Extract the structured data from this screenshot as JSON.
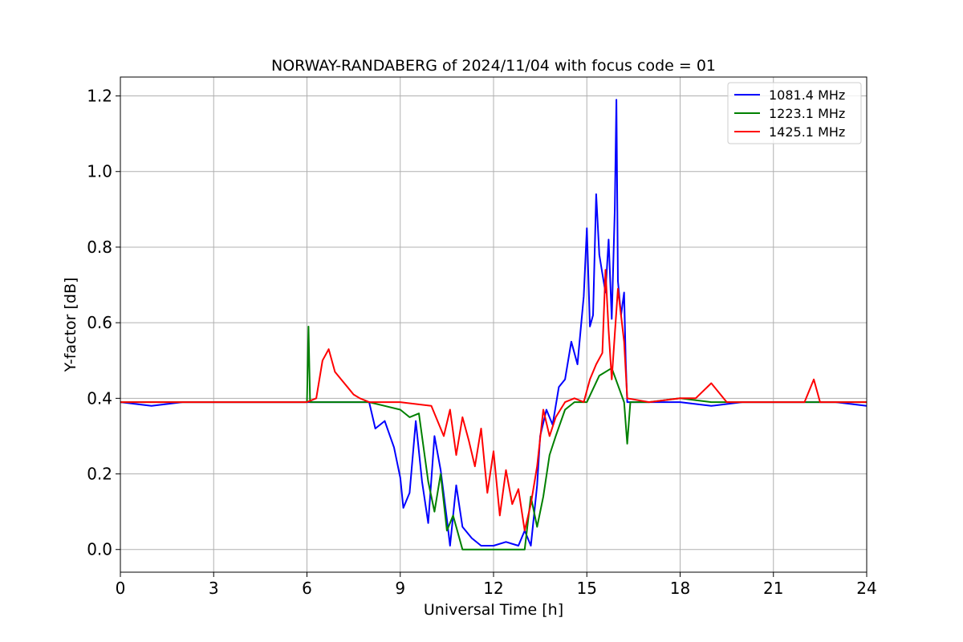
{
  "chart_data": {
    "type": "line",
    "title": "NORWAY-RANDABERG of 2024/11/04 with focus code = 01",
    "xlabel": "Universal Time [h]",
    "ylabel": "Y-factor [dB]",
    "xlim": [
      0,
      24
    ],
    "ylim": [
      -0.06,
      1.25
    ],
    "xticks": [
      0,
      3,
      6,
      9,
      12,
      15,
      18,
      21,
      24
    ],
    "yticks": [
      0.0,
      0.2,
      0.4,
      0.6,
      0.8,
      1.0,
      1.2
    ],
    "xtick_labels": [
      "0",
      "3",
      "6",
      "9",
      "12",
      "15",
      "18",
      "21",
      "24"
    ],
    "ytick_labels": [
      "0.0",
      "0.2",
      "0.4",
      "0.6",
      "0.8",
      "1.0",
      "1.2"
    ],
    "grid": true,
    "legend_position": "top-right",
    "series": [
      {
        "name": "1081.4 MHz",
        "color": "#0000ff",
        "x": [
          0,
          1,
          2,
          3,
          4,
          5,
          6,
          7,
          8,
          8.2,
          8.5,
          8.8,
          9.0,
          9.1,
          9.3,
          9.5,
          9.7,
          9.9,
          10.1,
          10.3,
          10.5,
          10.6,
          10.8,
          11.0,
          11.3,
          11.6,
          12.0,
          12.4,
          12.8,
          13.0,
          13.2,
          13.4,
          13.5,
          13.7,
          13.9,
          14.1,
          14.3,
          14.5,
          14.7,
          14.9,
          15.0,
          15.1,
          15.2,
          15.3,
          15.4,
          15.5,
          15.6,
          15.7,
          15.8,
          15.9,
          15.95,
          16.0,
          16.1,
          16.2,
          16.25,
          16.3,
          17,
          18,
          19,
          20,
          21,
          22,
          23,
          24
        ],
        "y": [
          0.39,
          0.38,
          0.39,
          0.39,
          0.39,
          0.39,
          0.39,
          0.39,
          0.39,
          0.32,
          0.34,
          0.27,
          0.19,
          0.11,
          0.15,
          0.34,
          0.18,
          0.07,
          0.3,
          0.21,
          0.08,
          0.01,
          0.17,
          0.06,
          0.03,
          0.01,
          0.01,
          0.02,
          0.01,
          0.05,
          0.01,
          0.17,
          0.3,
          0.37,
          0.33,
          0.43,
          0.45,
          0.55,
          0.49,
          0.67,
          0.85,
          0.59,
          0.62,
          0.94,
          0.78,
          0.73,
          0.68,
          0.82,
          0.61,
          0.9,
          1.19,
          0.71,
          0.62,
          0.68,
          0.5,
          0.39,
          0.39,
          0.39,
          0.38,
          0.39,
          0.39,
          0.39,
          0.39,
          0.38
        ]
      },
      {
        "name": "1223.1 MHz",
        "color": "#008000",
        "x": [
          0,
          1,
          2,
          3,
          4,
          5,
          6,
          6.05,
          6.1,
          7,
          8,
          8.5,
          9.0,
          9.3,
          9.6,
          9.9,
          10.1,
          10.3,
          10.5,
          10.7,
          11.0,
          11.5,
          12.0,
          12.5,
          13.0,
          13.2,
          13.4,
          13.6,
          13.8,
          14.0,
          14.3,
          14.6,
          15.0,
          15.4,
          15.8,
          16.2,
          16.3,
          16.4,
          17,
          18,
          19,
          20,
          21,
          22,
          23,
          24
        ],
        "y": [
          0.39,
          0.39,
          0.39,
          0.39,
          0.39,
          0.39,
          0.39,
          0.59,
          0.39,
          0.39,
          0.39,
          0.38,
          0.37,
          0.35,
          0.36,
          0.18,
          0.1,
          0.2,
          0.05,
          0.09,
          0.0,
          0.0,
          0.0,
          0.0,
          0.0,
          0.14,
          0.06,
          0.14,
          0.25,
          0.3,
          0.37,
          0.39,
          0.39,
          0.46,
          0.48,
          0.39,
          0.28,
          0.39,
          0.39,
          0.4,
          0.39,
          0.39,
          0.39,
          0.39,
          0.39,
          0.39
        ]
      },
      {
        "name": "1425.1 MHz",
        "color": "#ff0000",
        "x": [
          0,
          1,
          2,
          3,
          4,
          5,
          6,
          6.3,
          6.5,
          6.7,
          6.9,
          7.1,
          7.3,
          7.5,
          7.7,
          8,
          9,
          10,
          10.4,
          10.6,
          10.8,
          11.0,
          11.2,
          11.4,
          11.6,
          11.8,
          12.0,
          12.2,
          12.4,
          12.6,
          12.8,
          13.0,
          13.2,
          13.4,
          13.6,
          13.8,
          14.0,
          14.3,
          14.6,
          14.9,
          15.1,
          15.3,
          15.5,
          15.6,
          15.7,
          15.8,
          15.9,
          16.0,
          16.2,
          16.3,
          17,
          18,
          18.5,
          19,
          19.5,
          20,
          21,
          22,
          22.3,
          22.5,
          23,
          24
        ],
        "y": [
          0.39,
          0.39,
          0.39,
          0.39,
          0.39,
          0.39,
          0.39,
          0.4,
          0.5,
          0.53,
          0.47,
          0.45,
          0.43,
          0.41,
          0.4,
          0.39,
          0.39,
          0.38,
          0.3,
          0.37,
          0.25,
          0.35,
          0.29,
          0.22,
          0.32,
          0.15,
          0.26,
          0.09,
          0.21,
          0.12,
          0.16,
          0.05,
          0.12,
          0.22,
          0.37,
          0.3,
          0.35,
          0.39,
          0.4,
          0.39,
          0.45,
          0.49,
          0.52,
          0.74,
          0.58,
          0.45,
          0.57,
          0.69,
          0.55,
          0.4,
          0.39,
          0.4,
          0.4,
          0.44,
          0.39,
          0.39,
          0.39,
          0.39,
          0.45,
          0.39,
          0.39,
          0.39
        ]
      }
    ]
  }
}
